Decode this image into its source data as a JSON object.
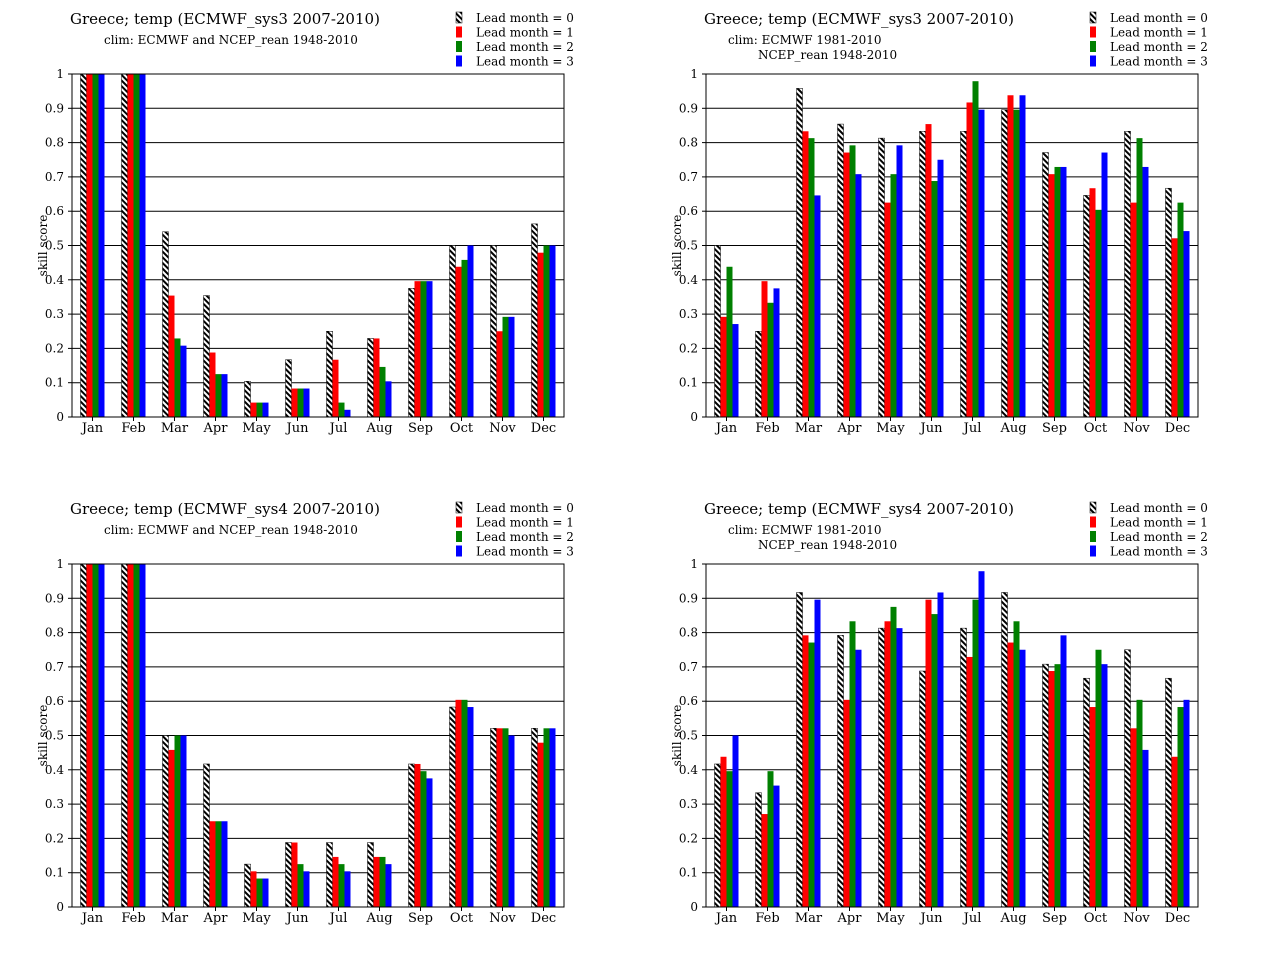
{
  "colors": {
    "lead0": "#000000",
    "lead1": "#ff0000",
    "lead2": "#008000",
    "lead3": "#0000ff",
    "grid": "#000000"
  },
  "chart_data": [
    {
      "type": "bar",
      "title": "Greece; temp (ECMWF_sys3 2007-2010)",
      "subtitle_lines": [
        "clim: ECMWF and NCEP_rean 1948-2010"
      ],
      "ylabel": "skill score",
      "ylim": [
        0,
        1
      ],
      "yticks": [
        "0",
        "0.1",
        "0.2",
        "0.3",
        "0.4",
        "0.5",
        "0.6",
        "0.7",
        "0.8",
        "0.9",
        "1"
      ],
      "grid": true,
      "legend_position": "top-right",
      "categories": [
        "Jan",
        "Feb",
        "Mar",
        "Apr",
        "May",
        "Jun",
        "Jul",
        "Aug",
        "Sep",
        "Oct",
        "Nov",
        "Dec"
      ],
      "series": [
        {
          "name": "Lead month = 0",
          "pattern": "hatched",
          "values": [
            1.0,
            1.0,
            0.54,
            0.354,
            0.104,
            0.167,
            0.25,
            0.229,
            0.375,
            0.5,
            0.5,
            0.563
          ]
        },
        {
          "name": "Lead month = 1",
          "values": [
            1.0,
            1.0,
            0.354,
            0.188,
            0.042,
            0.083,
            0.167,
            0.229,
            0.396,
            0.438,
            0.25,
            0.479
          ]
        },
        {
          "name": "Lead month = 2",
          "values": [
            1.0,
            1.0,
            0.229,
            0.125,
            0.042,
            0.083,
            0.042,
            0.146,
            0.396,
            0.458,
            0.292,
            0.5
          ]
        },
        {
          "name": "Lead month = 3",
          "values": [
            1.0,
            1.0,
            0.208,
            0.125,
            0.042,
            0.083,
            0.021,
            0.104,
            0.396,
            0.5,
            0.292,
            0.5
          ]
        }
      ]
    },
    {
      "type": "bar",
      "title": "Greece; temp (ECMWF_sys3 2007-2010)",
      "subtitle_lines": [
        "clim: ECMWF 1981-2010",
        "NCEP_rean 1948-2010"
      ],
      "ylabel": "skill score",
      "ylim": [
        0,
        1
      ],
      "yticks": [
        "0",
        "0.1",
        "0.2",
        "0.3",
        "0.4",
        "0.5",
        "0.6",
        "0.7",
        "0.8",
        "0.9",
        "1"
      ],
      "grid": true,
      "legend_position": "top-right",
      "categories": [
        "Jan",
        "Feb",
        "Mar",
        "Apr",
        "May",
        "Jun",
        "Jul",
        "Aug",
        "Sep",
        "Oct",
        "Nov",
        "Dec"
      ],
      "series": [
        {
          "name": "Lead month = 0",
          "pattern": "hatched",
          "values": [
            0.5,
            0.25,
            0.958,
            0.854,
            0.813,
            0.833,
            0.833,
            0.896,
            0.771,
            0.646,
            0.833,
            0.667
          ]
        },
        {
          "name": "Lead month = 1",
          "values": [
            0.292,
            0.396,
            0.833,
            0.771,
            0.625,
            0.854,
            0.917,
            0.938,
            0.708,
            0.667,
            0.625,
            0.521
          ]
        },
        {
          "name": "Lead month = 2",
          "values": [
            0.438,
            0.333,
            0.813,
            0.792,
            0.708,
            0.688,
            0.979,
            0.896,
            0.729,
            0.604,
            0.813,
            0.625
          ]
        },
        {
          "name": "Lead month = 3",
          "values": [
            0.271,
            0.375,
            0.646,
            0.708,
            0.792,
            0.75,
            0.896,
            0.938,
            0.729,
            0.771,
            0.729,
            0.542
          ]
        }
      ]
    },
    {
      "type": "bar",
      "title": "Greece; temp (ECMWF_sys4 2007-2010)",
      "subtitle_lines": [
        "clim: ECMWF and NCEP_rean 1948-2010"
      ],
      "ylabel": "skill score",
      "ylim": [
        0,
        1
      ],
      "yticks": [
        "0",
        "0.1",
        "0.2",
        "0.3",
        "0.4",
        "0.5",
        "0.6",
        "0.7",
        "0.8",
        "0.9",
        "1"
      ],
      "grid": true,
      "legend_position": "top-right",
      "categories": [
        "Jan",
        "Feb",
        "Mar",
        "Apr",
        "May",
        "Jun",
        "Jul",
        "Aug",
        "Sep",
        "Oct",
        "Nov",
        "Dec"
      ],
      "series": [
        {
          "name": "Lead month = 0",
          "pattern": "hatched",
          "values": [
            1.0,
            1.0,
            0.5,
            0.417,
            0.125,
            0.188,
            0.188,
            0.188,
            0.417,
            0.583,
            0.521,
            0.521
          ]
        },
        {
          "name": "Lead month = 1",
          "values": [
            1.0,
            1.0,
            0.458,
            0.25,
            0.104,
            0.188,
            0.146,
            0.146,
            0.417,
            0.604,
            0.521,
            0.479
          ]
        },
        {
          "name": "Lead month = 2",
          "values": [
            1.0,
            1.0,
            0.5,
            0.25,
            0.083,
            0.125,
            0.125,
            0.146,
            0.396,
            0.604,
            0.521,
            0.521
          ]
        },
        {
          "name": "Lead month = 3",
          "values": [
            1.0,
            1.0,
            0.5,
            0.25,
            0.083,
            0.104,
            0.104,
            0.125,
            0.375,
            0.583,
            0.5,
            0.521
          ]
        }
      ]
    },
    {
      "type": "bar",
      "title": "Greece; temp (ECMWF_sys4 2007-2010)",
      "subtitle_lines": [
        "clim: ECMWF 1981-2010",
        "NCEP_rean 1948-2010"
      ],
      "ylabel": "skill score",
      "ylim": [
        0,
        1
      ],
      "yticks": [
        "0",
        "0.1",
        "0.2",
        "0.3",
        "0.4",
        "0.5",
        "0.6",
        "0.7",
        "0.8",
        "0.9",
        "1"
      ],
      "grid": true,
      "legend_position": "top-right",
      "categories": [
        "Jan",
        "Feb",
        "Mar",
        "Apr",
        "May",
        "Jun",
        "Jul",
        "Aug",
        "Sep",
        "Oct",
        "Nov",
        "Dec"
      ],
      "series": [
        {
          "name": "Lead month = 0",
          "pattern": "hatched",
          "values": [
            0.417,
            0.333,
            0.917,
            0.792,
            0.813,
            0.688,
            0.813,
            0.917,
            0.708,
            0.667,
            0.75,
            0.667
          ]
        },
        {
          "name": "Lead month = 1",
          "values": [
            0.438,
            0.271,
            0.792,
            0.604,
            0.833,
            0.896,
            0.729,
            0.771,
            0.688,
            0.583,
            0.521,
            0.438
          ]
        },
        {
          "name": "Lead month = 2",
          "values": [
            0.396,
            0.396,
            0.771,
            0.833,
            0.875,
            0.854,
            0.896,
            0.833,
            0.708,
            0.75,
            0.604,
            0.583
          ]
        },
        {
          "name": "Lead month = 3",
          "values": [
            0.5,
            0.354,
            0.896,
            0.75,
            0.813,
            0.917,
            0.979,
            0.75,
            0.792,
            0.708,
            0.458,
            0.604
          ]
        }
      ]
    }
  ]
}
